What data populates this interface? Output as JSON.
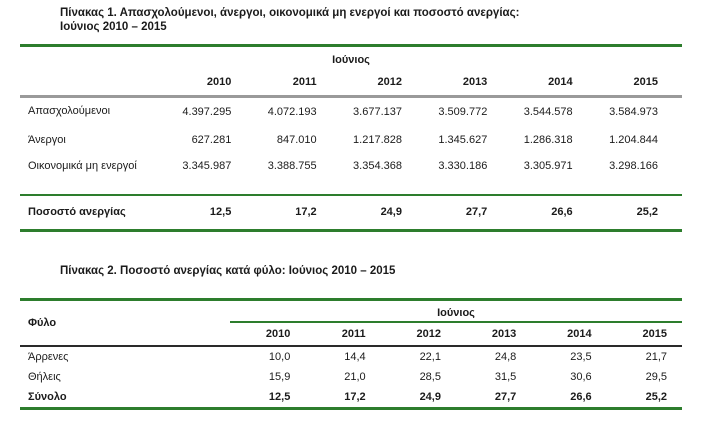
{
  "document": {
    "background": "#ffffff",
    "colors": {
      "table_green_rule": "#2d7d2d",
      "gray_rule": "#9a9a9a",
      "dark_rule": "#2a2a2a",
      "text": "#1b1b1b"
    }
  },
  "table1": {
    "title_line1": "Πίνακας 1. Απασχολούμενοι, άνεργοι, οικονομικά μη ενεργοί και ποσοστό ανεργίας:",
    "title_line2": "Ιούνιος 2010 – 2015",
    "month_header": "Ιούνιος",
    "years": [
      "2010",
      "2011",
      "2012",
      "2013",
      "2014",
      "2015"
    ],
    "rows": [
      {
        "label": "Απασχολούμενοι",
        "values": [
          "4.397.295",
          "4.072.193",
          "3.677.137",
          "3.509.772",
          "3.544.578",
          "3.584.973"
        ]
      },
      {
        "label": "Άνεργοι",
        "values": [
          "627.281",
          "847.010",
          "1.217.828",
          "1.345.627",
          "1.286.318",
          "1.204.844"
        ]
      },
      {
        "label": "Οικονομικά μη ενεργοί",
        "values": [
          "3.345.987",
          "3.388.755",
          "3.354.368",
          "3.330.186",
          "3.305.971",
          "3.298.166"
        ]
      },
      {
        "label": "Ποσοστό ανεργίας",
        "values": [
          "12,5",
          "17,2",
          "24,9",
          "27,7",
          "26,6",
          "25,2"
        ]
      }
    ]
  },
  "table2": {
    "title": "Πίνακας 2. Ποσοστό ανεργίας κατά φύλο: Ιούνιος 2010 – 2015",
    "gender_header": "Φύλο",
    "month_header": "Ιούνιος",
    "years": [
      "2010",
      "2011",
      "2012",
      "2013",
      "2014",
      "2015"
    ],
    "rows": [
      {
        "label": "Άρρενες",
        "values": [
          "10,0",
          "14,4",
          "22,1",
          "24,8",
          "23,5",
          "21,7"
        ]
      },
      {
        "label": "Θήλεις",
        "values": [
          "15,9",
          "21,0",
          "28,5",
          "31,5",
          "30,6",
          "29,5"
        ]
      },
      {
        "label": "Σύνολο",
        "values": [
          "12,5",
          "17,2",
          "24,9",
          "27,7",
          "26,6",
          "25,2"
        ]
      }
    ]
  }
}
